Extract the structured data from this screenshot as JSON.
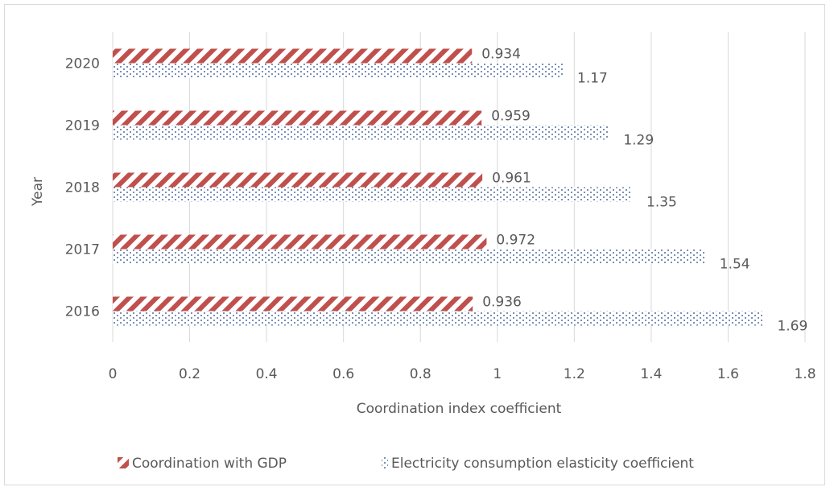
{
  "chart_data": {
    "type": "bar",
    "orientation": "horizontal",
    "categories": [
      "2016",
      "2017",
      "2018",
      "2019",
      "2020"
    ],
    "series": [
      {
        "name": "Coordination with GDP",
        "values": [
          0.936,
          0.972,
          0.961,
          0.959,
          0.934
        ],
        "color": "#c0504d",
        "pattern": "diagonal-stripes"
      },
      {
        "name": "Electricity consumption elasticity coefficient",
        "values": [
          1.69,
          1.54,
          1.35,
          1.29,
          1.17
        ],
        "color": "#4f6d9e",
        "pattern": "dots"
      }
    ],
    "data_labels": [
      [
        "0.936",
        "0.972",
        "0.961",
        "0.959",
        "0.934"
      ],
      [
        "1.69",
        "1.54",
        "1.35",
        "1.29",
        "1.17"
      ]
    ],
    "xlabel": "Coordination index coefficient",
    "ylabel": "Year",
    "xlim": [
      0,
      1.8
    ],
    "xticks": [
      "0",
      "0.2",
      "0.4",
      "0.6",
      "0.8",
      "1",
      "1.2",
      "1.4",
      "1.6",
      "1.8"
    ],
    "grid": "vertical",
    "legend_position": "bottom"
  }
}
